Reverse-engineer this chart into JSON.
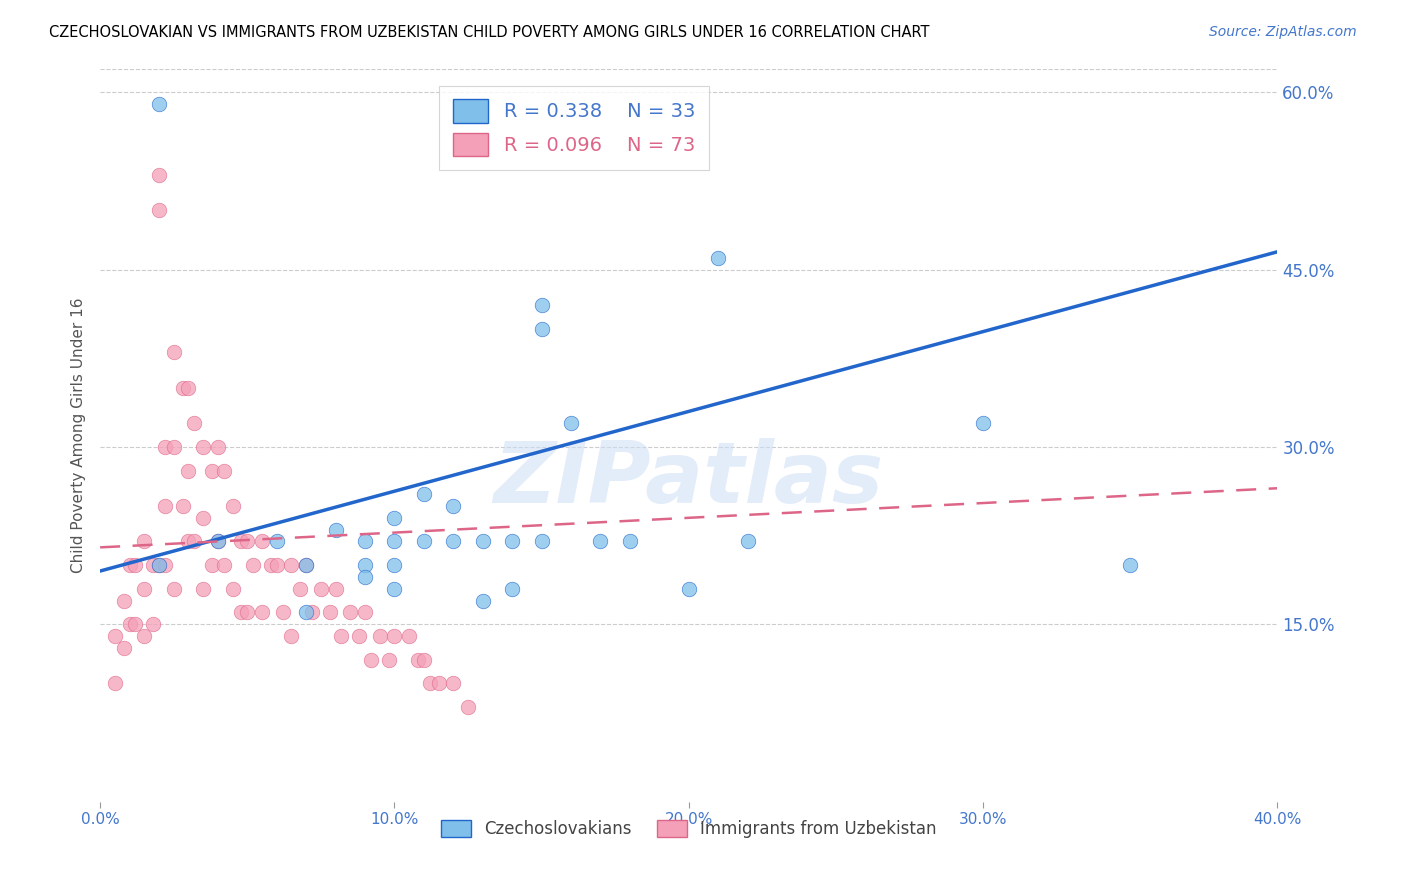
{
  "title": "CZECHOSLOVAKIAN VS IMMIGRANTS FROM UZBEKISTAN CHILD POVERTY AMONG GIRLS UNDER 16 CORRELATION CHART",
  "source": "Source: ZipAtlas.com",
  "ylabel": "Child Poverty Among Girls Under 16",
  "xlim": [
    0.0,
    0.4
  ],
  "ylim": [
    0.0,
    0.62
  ],
  "yticks": [
    0.15,
    0.3,
    0.45,
    0.6
  ],
  "ytick_labels": [
    "15.0%",
    "30.0%",
    "45.0%",
    "60.0%"
  ],
  "xticks": [
    0.0,
    0.1,
    0.2,
    0.3,
    0.4
  ],
  "xtick_labels": [
    "0.0%",
    "10.0%",
    "20.0%",
    "30.0%",
    "40.0%"
  ],
  "blue_color": "#7fbfea",
  "pink_color": "#f4a0b8",
  "trend_blue_color": "#2266cc",
  "trend_pink_color": "#dd6688",
  "legend_R_blue": "0.338",
  "legend_N_blue": "33",
  "legend_R_pink": "0.096",
  "legend_N_pink": "73",
  "watermark_text": "ZIPatlas",
  "blue_points_x": [
    0.02,
    0.04,
    0.06,
    0.07,
    0.07,
    0.08,
    0.09,
    0.09,
    0.09,
    0.1,
    0.1,
    0.1,
    0.1,
    0.11,
    0.11,
    0.12,
    0.12,
    0.13,
    0.13,
    0.14,
    0.14,
    0.15,
    0.15,
    0.15,
    0.16,
    0.17,
    0.18,
    0.2,
    0.21,
    0.22,
    0.3,
    0.35,
    0.02
  ],
  "blue_points_y": [
    0.2,
    0.22,
    0.22,
    0.2,
    0.16,
    0.23,
    0.22,
    0.2,
    0.19,
    0.24,
    0.22,
    0.2,
    0.18,
    0.26,
    0.22,
    0.25,
    0.22,
    0.22,
    0.17,
    0.22,
    0.18,
    0.42,
    0.4,
    0.22,
    0.32,
    0.22,
    0.22,
    0.18,
    0.46,
    0.22,
    0.32,
    0.2,
    0.59
  ],
  "pink_points_x": [
    0.005,
    0.005,
    0.008,
    0.008,
    0.01,
    0.01,
    0.012,
    0.012,
    0.015,
    0.015,
    0.015,
    0.018,
    0.018,
    0.02,
    0.02,
    0.02,
    0.022,
    0.022,
    0.022,
    0.025,
    0.025,
    0.025,
    0.028,
    0.028,
    0.03,
    0.03,
    0.03,
    0.032,
    0.032,
    0.035,
    0.035,
    0.035,
    0.038,
    0.038,
    0.04,
    0.04,
    0.042,
    0.042,
    0.045,
    0.045,
    0.048,
    0.048,
    0.05,
    0.05,
    0.052,
    0.055,
    0.055,
    0.058,
    0.06,
    0.062,
    0.065,
    0.065,
    0.068,
    0.07,
    0.072,
    0.075,
    0.078,
    0.08,
    0.082,
    0.085,
    0.088,
    0.09,
    0.092,
    0.095,
    0.098,
    0.1,
    0.105,
    0.108,
    0.11,
    0.112,
    0.115,
    0.12,
    0.125
  ],
  "pink_points_y": [
    0.14,
    0.1,
    0.17,
    0.13,
    0.2,
    0.15,
    0.2,
    0.15,
    0.22,
    0.18,
    0.14,
    0.2,
    0.15,
    0.53,
    0.5,
    0.2,
    0.3,
    0.25,
    0.2,
    0.38,
    0.3,
    0.18,
    0.35,
    0.25,
    0.35,
    0.28,
    0.22,
    0.32,
    0.22,
    0.3,
    0.24,
    0.18,
    0.28,
    0.2,
    0.3,
    0.22,
    0.28,
    0.2,
    0.25,
    0.18,
    0.22,
    0.16,
    0.22,
    0.16,
    0.2,
    0.22,
    0.16,
    0.2,
    0.2,
    0.16,
    0.2,
    0.14,
    0.18,
    0.2,
    0.16,
    0.18,
    0.16,
    0.18,
    0.14,
    0.16,
    0.14,
    0.16,
    0.12,
    0.14,
    0.12,
    0.14,
    0.14,
    0.12,
    0.12,
    0.1,
    0.1,
    0.1,
    0.08
  ],
  "blue_trend_x0": 0.0,
  "blue_trend_y0": 0.195,
  "blue_trend_x1": 0.4,
  "blue_trend_y1": 0.465,
  "pink_trend_x0": 0.0,
  "pink_trend_y0": 0.215,
  "pink_trend_x1": 0.4,
  "pink_trend_y1": 0.265
}
